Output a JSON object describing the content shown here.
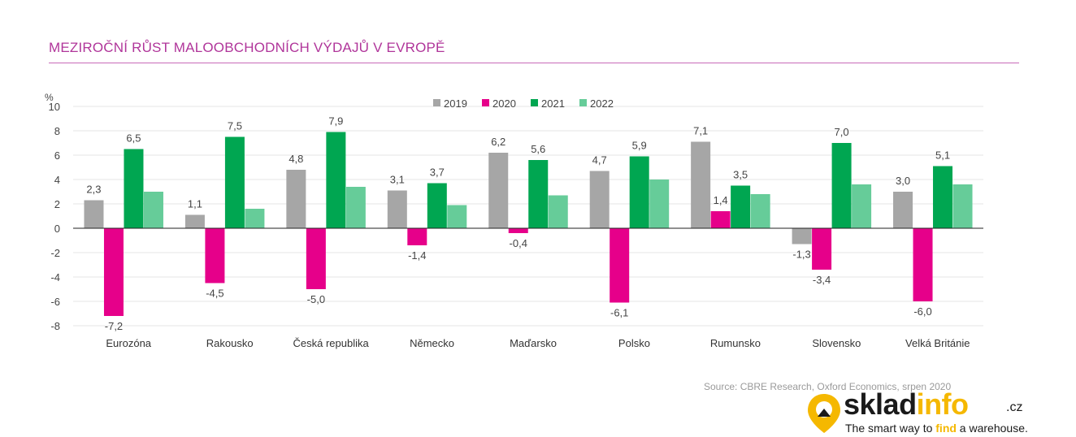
{
  "page": {
    "title": "MEZIROČNÍ RŮST MALOOBCHODNÍCH VÝDAJŮ V EVROPĚ",
    "source": "Source: CBRE Research, Oxford Economics, srpen 2020"
  },
  "logo": {
    "word_part1": "sklad",
    "word_part2": "info",
    "tld": ".cz",
    "tagline_pre": "The smart way to ",
    "tagline_find": "find",
    "tagline_post": " a warehouse.",
    "colors": {
      "accent": "#f5b800",
      "text": "#1a1a1a"
    },
    "icon": "map-pin-icon"
  },
  "chart_data": {
    "type": "bar",
    "ylabel": "%",
    "ylim": [
      -8,
      10
    ],
    "yticks": [
      -8,
      -6,
      -4,
      -2,
      0,
      2,
      4,
      6,
      8,
      10
    ],
    "grid": true,
    "legend_position": "top-center",
    "categories": [
      "Eurozóna",
      "Rakousko",
      "Česká republika",
      "Německo",
      "Maďarsko",
      "Polsko",
      "Rumunsko",
      "Slovensko",
      "Velká Británie"
    ],
    "series": [
      {
        "name": "2019",
        "color": "#a6a6a6",
        "values": [
          2.3,
          1.1,
          4.8,
          3.1,
          6.2,
          4.7,
          7.1,
          -1.3,
          3.0
        ],
        "labels": [
          "2,3",
          "1,1",
          "4,8",
          "3,1",
          "6,2",
          "4,7",
          "7,1",
          "-1,3",
          "3,0"
        ]
      },
      {
        "name": "2020",
        "color": "#e6008a",
        "values": [
          -7.2,
          -4.5,
          -5.0,
          -1.4,
          -0.4,
          -6.1,
          1.4,
          -3.4,
          -6.0
        ],
        "labels": [
          "-7,2",
          "-4,5",
          "-5,0",
          "-1,4",
          "-0,4",
          "-6,1",
          "1,4",
          "-3,4",
          "-6,0"
        ]
      },
      {
        "name": "2021",
        "color": "#00a651",
        "values": [
          6.5,
          7.5,
          7.9,
          3.7,
          5.6,
          5.9,
          3.5,
          7.0,
          5.1
        ],
        "labels": [
          "6,5",
          "7,5",
          "7,9",
          "3,7",
          "5,6",
          "5,9",
          "3,5",
          "7,0",
          "5,1"
        ]
      },
      {
        "name": "2022",
        "color": "#66cc99",
        "values": [
          3.0,
          1.6,
          3.4,
          1.9,
          2.7,
          4.0,
          2.8,
          3.6,
          3.6
        ],
        "labels": []
      }
    ]
  }
}
